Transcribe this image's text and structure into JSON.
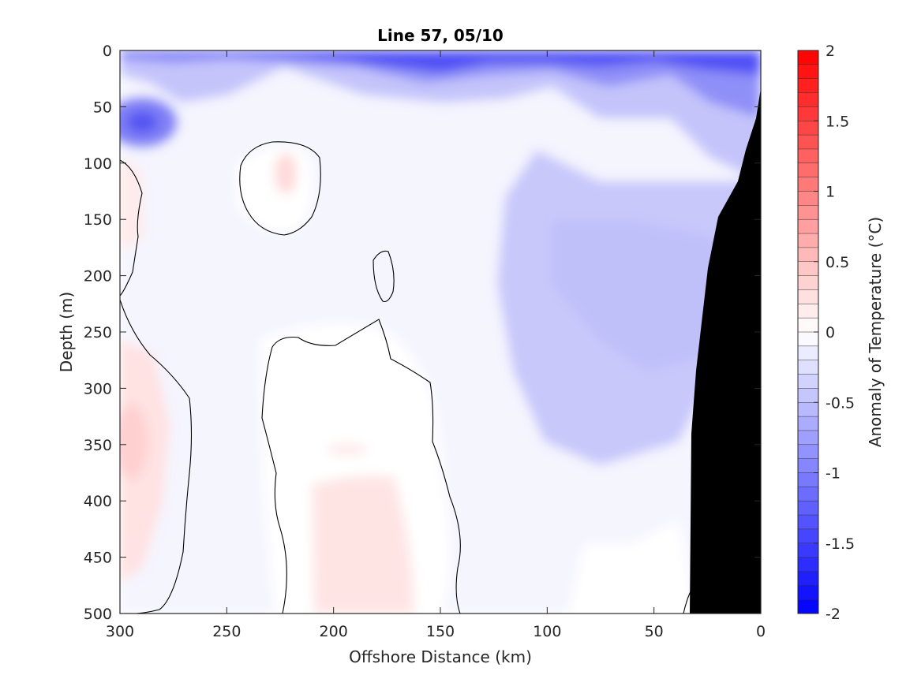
{
  "chart_data": {
    "type": "heatmap",
    "title": "Line 57, 05/10",
    "xlabel": "Offshore Distance (km)",
    "ylabel": "Depth (m)",
    "xlim": [
      300,
      0
    ],
    "ylim": [
      0,
      500
    ],
    "x_ticks": [
      "300",
      "250",
      "200",
      "150",
      "100",
      "50",
      "0"
    ],
    "y_ticks": [
      "0",
      "50",
      "100",
      "150",
      "200",
      "250",
      "300",
      "350",
      "400",
      "450",
      "500"
    ],
    "colorbar": {
      "label": "Anomaly of Temperature (°C)",
      "range": [
        -2,
        2
      ],
      "ticks": [
        "2",
        "1.5",
        "1",
        "0.5",
        "0",
        "-0.5",
        "-1",
        "-1.5",
        "-2"
      ],
      "levels": 40,
      "colormap": "blue-white-red",
      "min_color": "#0000ff",
      "max_color": "#ff0000"
    },
    "zero_contour": true,
    "land_color": "#000000",
    "features": [
      {
        "kind": "cold-anomaly",
        "distance_km": [
          0,
          300
        ],
        "depth_m": [
          0,
          60
        ],
        "approx_value": -1.5
      },
      {
        "kind": "cold-anomaly",
        "distance_km": [
          275,
          300
        ],
        "depth_m": [
          40,
          90
        ],
        "approx_value": -1.3
      },
      {
        "kind": "cold-anomaly",
        "distance_km": [
          20,
          120
        ],
        "depth_m": [
          100,
          300
        ],
        "approx_value": -0.6
      },
      {
        "kind": "warm-anomaly",
        "distance_km": [
          210,
          225
        ],
        "depth_m": [
          90,
          130
        ],
        "approx_value": 0.3
      },
      {
        "kind": "warm-anomaly",
        "distance_km": [
          270,
          300
        ],
        "depth_m": [
          260,
          400
        ],
        "approx_value": 0.3
      },
      {
        "kind": "warm-anomaly",
        "distance_km": [
          160,
          210
        ],
        "depth_m": [
          380,
          500
        ],
        "approx_value": 0.2
      }
    ]
  }
}
